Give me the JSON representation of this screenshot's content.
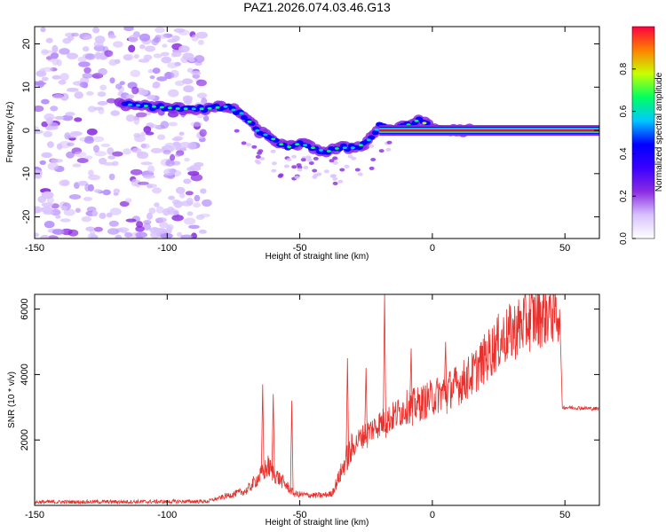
{
  "title": "PAZ1.2026.074.03.46.G13",
  "chart_data": [
    {
      "type": "heatmap",
      "name": "spectrogram",
      "xlabel": "Height of straight line (km)",
      "ylabel": "Frequency (Hz)",
      "xlim": [
        -150,
        63
      ],
      "ylim": [
        -25,
        24
      ],
      "xticks": [
        -150,
        -100,
        -50,
        0,
        50
      ],
      "yticks": [
        -20,
        -10,
        0,
        10,
        20
      ],
      "colorbar": {
        "label": "Normalized spectral amplitude",
        "range": [
          0,
          1
        ],
        "ticks": [
          0.0,
          0.2,
          0.4,
          0.6,
          0.8
        ],
        "tick_labels": [
          "0.0",
          "0.2",
          "0.4",
          "0.6",
          "0.8"
        ],
        "colormap": [
          "#ffffff",
          "#d9c2ff",
          "#8a2be2",
          "#3a00ff",
          "#0000ff",
          "#00c8ff",
          "#00ff60",
          "#c8ff00",
          "#ff8000",
          "#ff0040"
        ]
      },
      "ridge": {
        "x": [
          -115,
          -105,
          -95,
          -85,
          -78,
          -72,
          -66,
          -60,
          -55,
          -50,
          -45,
          -40,
          -35,
          -30,
          -25,
          -20,
          -15,
          -10,
          -5,
          0,
          5,
          10,
          15,
          63
        ],
        "y": [
          6,
          5.5,
          5,
          5,
          5.5,
          4,
          0,
          -2,
          -4,
          -3,
          -4,
          -5,
          -4,
          -4,
          -3,
          1,
          0,
          1,
          2.5,
          0.5,
          0,
          0,
          0,
          0
        ]
      },
      "noise_region_x": [
        -150,
        -85
      ]
    },
    {
      "type": "line",
      "name": "snr",
      "xlabel": "Height of straight line (km)",
      "ylabel": "SNR (10 * v/v)",
      "xlim": [
        -150,
        63
      ],
      "ylim": [
        0,
        6450
      ],
      "xticks": [
        -150,
        -100,
        -50,
        0,
        50
      ],
      "yticks": [
        2000,
        4000,
        6000
      ],
      "color": "#e8302c",
      "envelope": {
        "x": [
          -150,
          -85,
          -78,
          -70,
          -65,
          -62,
          -60,
          -55,
          -52,
          -48,
          -42,
          -38,
          -35,
          -32,
          -28,
          -25,
          -20,
          -15,
          -10,
          -5,
          0,
          5,
          10,
          15,
          20,
          25,
          30,
          35,
          40,
          45,
          48,
          49,
          63
        ],
        "y": [
          100,
          120,
          280,
          450,
          900,
          1200,
          1000,
          600,
          350,
          320,
          300,
          350,
          900,
          1500,
          2000,
          2200,
          2500,
          2700,
          3000,
          3100,
          3300,
          3500,
          3700,
          4000,
          4500,
          5000,
          5300,
          5600,
          5800,
          5950,
          5950,
          3000,
          2950
        ]
      },
      "spikes": [
        {
          "x": -64,
          "y": 3700
        },
        {
          "x": -60,
          "y": 3400
        },
        {
          "x": -53,
          "y": 3200
        },
        {
          "x": -32,
          "y": 4500
        },
        {
          "x": -25,
          "y": 4200
        },
        {
          "x": -18,
          "y": 6450
        },
        {
          "x": -8,
          "y": 4800
        },
        {
          "x": 5,
          "y": 5000
        }
      ]
    }
  ]
}
